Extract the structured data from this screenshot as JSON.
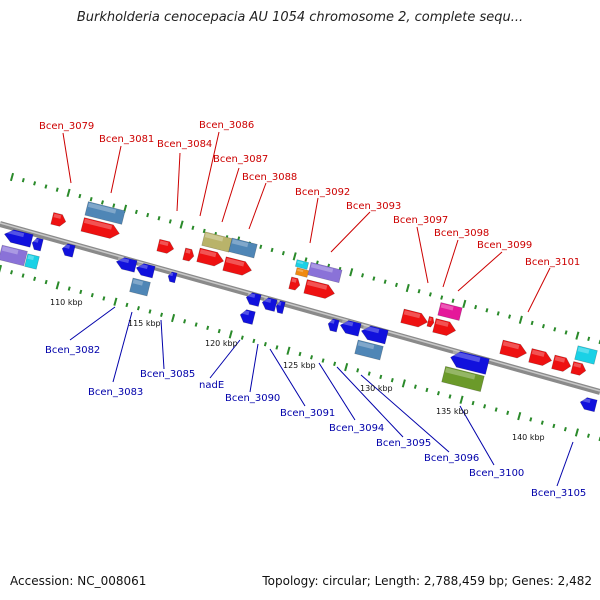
{
  "title": "Burkholderia cenocepacia AU 1054 chromosome 2, complete sequ...",
  "accession": "Accession: NC_008061",
  "topology": "Topology: circular; Length: 2,788,459 bp; Genes: 2,482",
  "colors": {
    "forward": "#ee1111",
    "reverse": "#1111dd",
    "steelblue": "#4f86b6",
    "khaki": "#b9b36a",
    "purple": "#8a72d8",
    "magenta": "#e5189a",
    "cyan": "#1ad1e6",
    "olive": "#6b9a2a",
    "orange": "#f08a10",
    "backbone": "#888888",
    "top_label": "#cc0000",
    "bottom_label": "#0000aa",
    "tick_green": "#2a8a2a"
  },
  "top_labels": [
    "Bcen_3079",
    "Bcen_3081",
    "Bcen_3084",
    "Bcen_3086",
    "Bcen_3087",
    "Bcen_3088",
    "Bcen_3092",
    "Bcen_3093",
    "Bcen_3097",
    "Bcen_3098",
    "Bcen_3099",
    "Bcen_3101"
  ],
  "bottom_labels": [
    "Bcen_3082",
    "Bcen_3083",
    "Bcen_3085",
    "nadE",
    "Bcen_3090",
    "Bcen_3091",
    "Bcen_3094",
    "Bcen_3095",
    "Bcen_3096",
    "Bcen_3100",
    "Bcen_3105"
  ],
  "scale_labels": [
    "110 kbp",
    "115 kbp",
    "120 kbp",
    "125 kbp",
    "130 kbp",
    "135 kbp",
    "140 kbp"
  ]
}
